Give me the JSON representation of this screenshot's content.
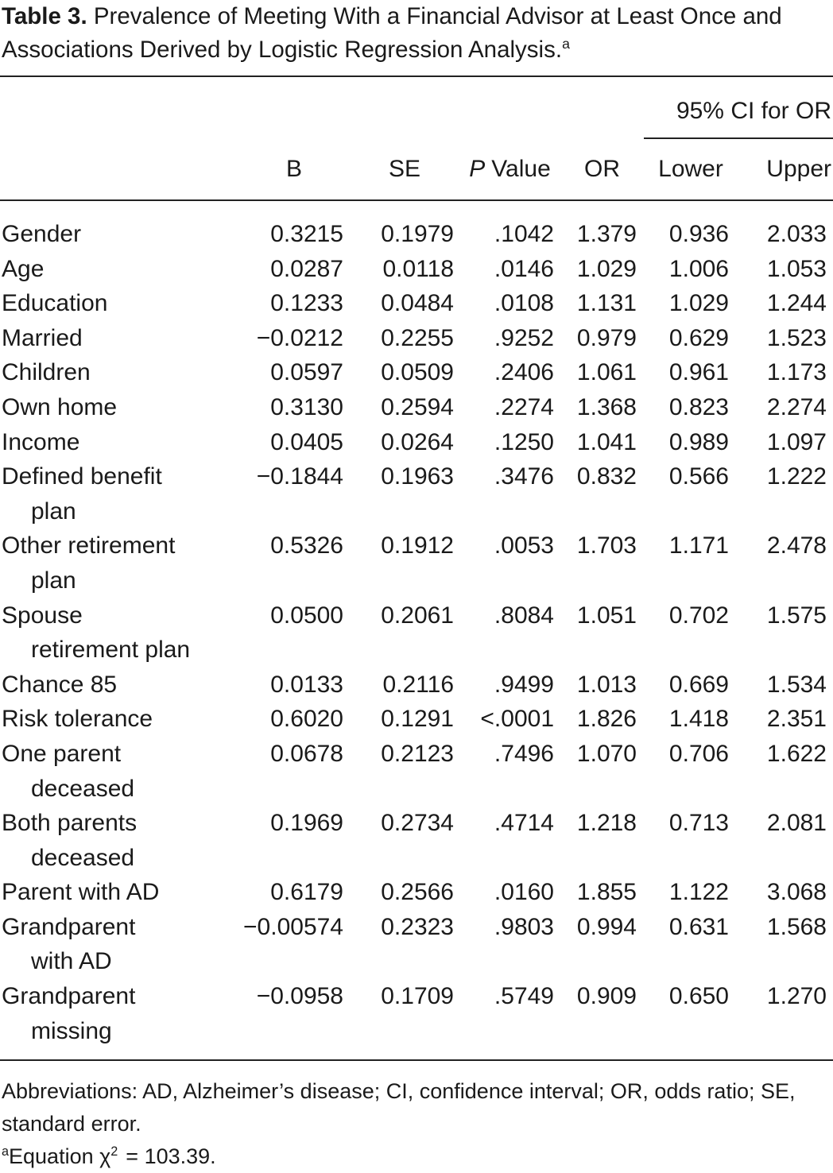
{
  "title": {
    "label": "Table 3.",
    "text": "Prevalence of Meeting With a Financial Advisor at Least Once and Associations Derived by Logistic Regression Analysis.",
    "marker": "a"
  },
  "table": {
    "group_header": "95% CI for OR",
    "columns": [
      "B",
      "SE",
      {
        "italic": "P",
        "text": "Value"
      },
      "OR",
      "Lower",
      "Upper"
    ],
    "rows": [
      {
        "label": [
          "Gender"
        ],
        "values": [
          "0.3215",
          "0.1979",
          ".1042",
          "1.379",
          "0.936",
          "2.033"
        ]
      },
      {
        "label": [
          "Age"
        ],
        "values": [
          "0.0287",
          "0.0118",
          ".0146",
          "1.029",
          "1.006",
          "1.053"
        ]
      },
      {
        "label": [
          "Education"
        ],
        "values": [
          "0.1233",
          "0.0484",
          ".0108",
          "1.131",
          "1.029",
          "1.244"
        ]
      },
      {
        "label": [
          "Married"
        ],
        "values": [
          "−0.0212",
          "0.2255",
          ".9252",
          "0.979",
          "0.629",
          "1.523"
        ]
      },
      {
        "label": [
          "Children"
        ],
        "values": [
          "0.0597",
          "0.0509",
          ".2406",
          "1.061",
          "0.961",
          "1.173"
        ]
      },
      {
        "label": [
          "Own home"
        ],
        "values": [
          "0.3130",
          "0.2594",
          ".2274",
          "1.368",
          "0.823",
          "2.274"
        ]
      },
      {
        "label": [
          "Income"
        ],
        "values": [
          "0.0405",
          "0.0264",
          ".1250",
          "1.041",
          "0.989",
          "1.097"
        ]
      },
      {
        "label": [
          "Defined benefit",
          "plan"
        ],
        "values": [
          "−0.1844",
          "0.1963",
          ".3476",
          "0.832",
          "0.566",
          "1.222"
        ]
      },
      {
        "label": [
          "Other retirement",
          "plan"
        ],
        "values": [
          "0.5326",
          "0.1912",
          ".0053",
          "1.703",
          "1.171",
          "2.478"
        ]
      },
      {
        "label": [
          "Spouse",
          "retirement plan"
        ],
        "values": [
          "0.0500",
          "0.2061",
          ".8084",
          "1.051",
          "0.702",
          "1.575"
        ]
      },
      {
        "label": [
          "Chance 85"
        ],
        "values": [
          "0.0133",
          "0.2116",
          ".9499",
          "1.013",
          "0.669",
          "1.534"
        ]
      },
      {
        "label": [
          "Risk tolerance"
        ],
        "values": [
          "0.6020",
          "0.1291",
          "<.0001",
          "1.826",
          "1.418",
          "2.351"
        ]
      },
      {
        "label": [
          "One parent",
          "deceased"
        ],
        "values": [
          "0.0678",
          "0.2123",
          ".7496",
          "1.070",
          "0.706",
          "1.622"
        ]
      },
      {
        "label": [
          "Both parents",
          "deceased"
        ],
        "values": [
          "0.1969",
          "0.2734",
          ".4714",
          "1.218",
          "0.713",
          "2.081"
        ]
      },
      {
        "label": [
          "Parent with AD"
        ],
        "values": [
          "0.6179",
          "0.2566",
          ".0160",
          "1.855",
          "1.122",
          "3.068"
        ]
      },
      {
        "label": [
          "Grandparent",
          "with AD"
        ],
        "values": [
          "−0.00574",
          "0.2323",
          ".9803",
          "0.994",
          "0.631",
          "1.568"
        ]
      },
      {
        "label": [
          "Grandparent",
          "missing"
        ],
        "values": [
          "−0.0958",
          "0.1709",
          ".5749",
          "0.909",
          "0.650",
          "1.270"
        ]
      }
    ]
  },
  "footnotes": {
    "abbreviations": "Abbreviations: AD, Alzheimer’s disease; CI, confidence interval; OR, odds ratio; SE, standard error.",
    "equation": {
      "marker": "a",
      "text": "Equation χ",
      "superscript": "2",
      "rest": "= 103.39."
    }
  }
}
